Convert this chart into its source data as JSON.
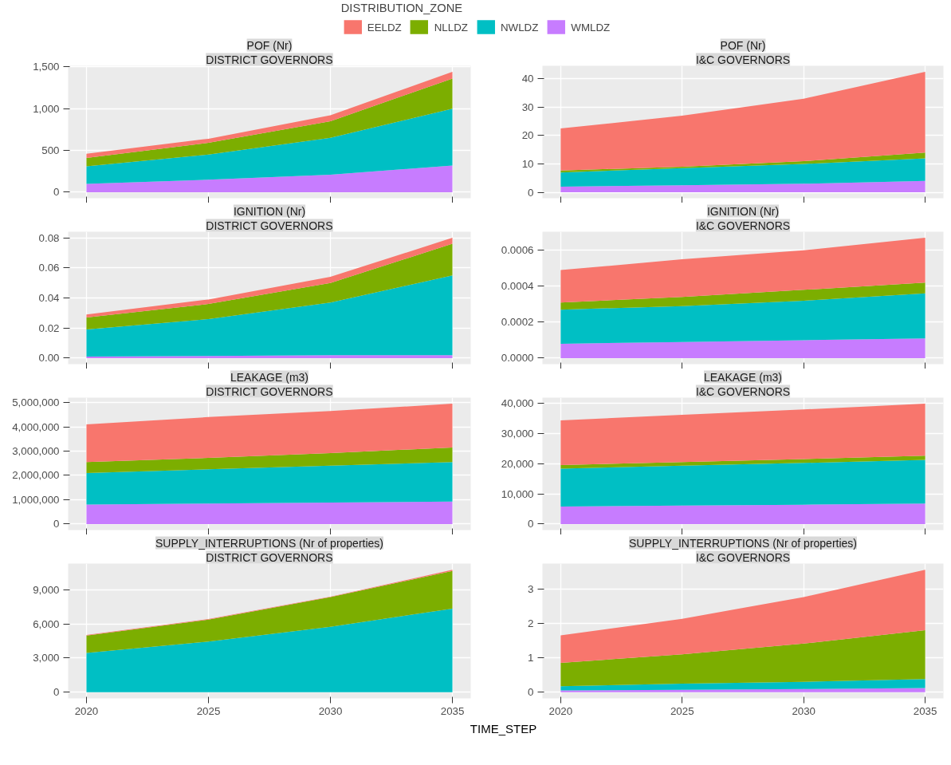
{
  "chart_data": [
    {
      "type": "area",
      "stacked": true,
      "title": "POF (Nr)",
      "subtitle": "DISTRICT GOVERNORS",
      "legend_title": "DISTRIBUTION_ZONE",
      "legend": "top",
      "grid": true,
      "tick_labels": "y",
      "x": [
        2020,
        2025,
        2030,
        2035
      ],
      "xlim": [
        2019.25,
        2035.75
      ],
      "xticks": [
        2020,
        2025,
        2030,
        2035
      ],
      "ylim": [
        -72,
        1512
      ],
      "yticks": [
        0,
        500,
        {
          "value": 1000,
          "label": "1,000"
        },
        {
          "value": 1500,
          "label": "1,500"
        }
      ],
      "series": [
        {
          "name": "WMLDZ",
          "color": "#c77cff",
          "values": [
            100,
            150,
            210,
            320
          ]
        },
        {
          "name": "NWLDZ",
          "color": "#00bfc4",
          "values": [
            210,
            300,
            440,
            680
          ]
        },
        {
          "name": "NLLDZ",
          "color": "#7cae00",
          "values": [
            100,
            140,
            200,
            360
          ]
        },
        {
          "name": "EELDZ",
          "color": "#f8766d",
          "values": [
            50,
            50,
            70,
            80
          ]
        }
      ]
    },
    {
      "type": "area",
      "stacked": true,
      "title": "POF (Nr)",
      "subtitle": "I&C GOVERNORS",
      "grid": true,
      "tick_labels": "y",
      "x": [
        2020,
        2025,
        2030,
        2035
      ],
      "xlim": [
        2019.25,
        2035.75
      ],
      "xticks": [
        2020,
        2025,
        2030,
        2035
      ],
      "ylim": [
        -2.1,
        44.6
      ],
      "yticks": [
        0,
        10,
        20,
        30,
        40
      ],
      "series": [
        {
          "color": "#c77cff",
          "values": [
            2,
            2.5,
            3,
            4
          ]
        },
        {
          "color": "#00bfc4",
          "values": [
            5,
            6,
            7,
            8
          ]
        },
        {
          "color": "#7cae00",
          "values": [
            0.7,
            0.5,
            1,
            2
          ]
        },
        {
          "color": "#f8766d",
          "values": [
            14.8,
            18,
            22,
            28.5
          ]
        }
      ]
    },
    {
      "type": "area",
      "stacked": true,
      "title": "IGNITION (Nr)",
      "subtitle": "DISTRICT GOVERNORS",
      "grid": true,
      "tick_labels": "y",
      "x": [
        2020,
        2025,
        2030,
        2035
      ],
      "xlim": [
        2019.25,
        2035.75
      ],
      "xticks": [
        2020,
        2025,
        2030,
        2035
      ],
      "ylim": [
        -0.004,
        0.084
      ],
      "yticks": [
        {
          "value": 0,
          "label": "0.00"
        },
        0.02,
        0.04,
        0.06,
        0.08
      ],
      "series": [
        {
          "color": "#c77cff",
          "values": [
            0.001,
            0.0015,
            0.002,
            0.002
          ]
        },
        {
          "color": "#00bfc4",
          "values": [
            0.018,
            0.0245,
            0.035,
            0.053
          ]
        },
        {
          "color": "#7cae00",
          "values": [
            0.008,
            0.01,
            0.013,
            0.021
          ]
        },
        {
          "color": "#f8766d",
          "values": [
            0.002,
            0.003,
            0.004,
            0.004
          ]
        }
      ]
    },
    {
      "type": "area",
      "stacked": true,
      "title": "IGNITION (Nr)",
      "subtitle": "I&C GOVERNORS",
      "grid": true,
      "tick_labels": "y",
      "x": [
        2020,
        2025,
        2030,
        2035
      ],
      "xlim": [
        2019.25,
        2035.75
      ],
      "xticks": [
        2020,
        2025,
        2030,
        2035
      ],
      "ylim": [
        -3.35e-05,
        0.0007035
      ],
      "yticks": [
        {
          "value": 0,
          "label": "0.0000"
        },
        0.0002,
        0.0004,
        0.0006
      ],
      "series": [
        {
          "color": "#c77cff",
          "values": [
            8e-05,
            9e-05,
            0.0001,
            0.00011
          ]
        },
        {
          "color": "#00bfc4",
          "values": [
            0.00019,
            0.0002,
            0.00022,
            0.00025
          ]
        },
        {
          "color": "#7cae00",
          "values": [
            4e-05,
            5e-05,
            6e-05,
            6e-05
          ]
        },
        {
          "color": "#f8766d",
          "values": [
            0.00018,
            0.00021,
            0.00022,
            0.00025
          ]
        }
      ]
    },
    {
      "type": "area",
      "stacked": true,
      "title": "LEAKAGE (m3)",
      "subtitle": "DISTRICT GOVERNORS",
      "grid": true,
      "tick_labels": "y",
      "x": [
        2020,
        2025,
        2030,
        2035
      ],
      "xlim": [
        2019.25,
        2035.75
      ],
      "xticks": [
        2020,
        2025,
        2030,
        2035
      ],
      "ylim": [
        -250000,
        5200000
      ],
      "yticks": [
        0,
        {
          "value": 1000000,
          "label": "1,000,000"
        },
        {
          "value": 2000000,
          "label": "2,000,000"
        },
        {
          "value": 3000000,
          "label": "3,000,000"
        },
        {
          "value": 4000000,
          "label": "4,000,000"
        },
        {
          "value": 5000000,
          "label": "5,000,000"
        }
      ],
      "series": [
        {
          "color": "#c77cff",
          "values": [
            800000,
            840000,
            880000,
            920000
          ]
        },
        {
          "color": "#00bfc4",
          "values": [
            1300000,
            1410000,
            1520000,
            1630000
          ]
        },
        {
          "color": "#7cae00",
          "values": [
            450000,
            470000,
            520000,
            600000
          ]
        },
        {
          "color": "#f8766d",
          "values": [
            1550000,
            1680000,
            1730000,
            1800000
          ]
        }
      ]
    },
    {
      "type": "area",
      "stacked": true,
      "title": "LEAKAGE (m3)",
      "subtitle": "I&C GOVERNORS",
      "grid": true,
      "tick_labels": "y",
      "x": [
        2020,
        2025,
        2030,
        2035
      ],
      "xlim": [
        2019.25,
        2035.75
      ],
      "xticks": [
        2020,
        2025,
        2030,
        2035
      ],
      "ylim": [
        -2000,
        41800
      ],
      "yticks": [
        0,
        {
          "value": 10000,
          "label": "10,000"
        },
        {
          "value": 20000,
          "label": "20,000"
        },
        {
          "value": 30000,
          "label": "30,000"
        },
        {
          "value": 40000,
          "label": "40,000"
        }
      ],
      "series": [
        {
          "color": "#c77cff",
          "values": [
            5800,
            6100,
            6400,
            6800
          ]
        },
        {
          "color": "#00bfc4",
          "values": [
            12500,
            13200,
            13800,
            14400
          ]
        },
        {
          "color": "#7cae00",
          "values": [
            1200,
            1200,
            1300,
            1400
          ]
        },
        {
          "color": "#f8766d",
          "values": [
            14800,
            15600,
            16400,
            17200
          ]
        }
      ]
    },
    {
      "type": "area",
      "stacked": true,
      "title": "SUPPLY_INTERRUPTIONS (Nr of properties)",
      "subtitle": "DISTRICT GOVERNORS",
      "xlabel": "TIME_STEP",
      "grid": true,
      "x": [
        2020,
        2025,
        2030,
        2035
      ],
      "xlim": [
        2019.25,
        2035.75
      ],
      "xticks": [
        2020,
        2025,
        2030,
        2035
      ],
      "ylim": [
        -540,
        11300
      ],
      "yticks": [
        0,
        {
          "value": 3000,
          "label": "3,000"
        },
        {
          "value": 6000,
          "label": "6,000"
        },
        {
          "value": 9000,
          "label": "9,000"
        }
      ],
      "series": [
        {
          "color": "#00bfc4",
          "values": [
            3450,
            4450,
            5750,
            7350
          ]
        },
        {
          "color": "#7cae00",
          "values": [
            1530,
            1930,
            2600,
            3300
          ]
        },
        {
          "color": "#f8766d",
          "values": [
            50,
            50,
            50,
            100
          ]
        }
      ]
    },
    {
      "type": "area",
      "stacked": true,
      "title": "SUPPLY_INTERRUPTIONS (Nr of properties)",
      "subtitle": "I&C GOVERNORS",
      "grid": true,
      "x": [
        2020,
        2025,
        2030,
        2035
      ],
      "xlim": [
        2019.25,
        2035.75
      ],
      "xticks": [
        2020,
        2025,
        2030,
        2035
      ],
      "ylim": [
        -0.18,
        3.73
      ],
      "yticks": [
        0,
        1,
        2,
        3
      ],
      "series": [
        {
          "color": "#c77cff",
          "values": [
            0.05,
            0.07,
            0.09,
            0.12
          ]
        },
        {
          "color": "#00bfc4",
          "values": [
            0.12,
            0.18,
            0.21,
            0.26
          ]
        },
        {
          "color": "#7cae00",
          "values": [
            0.68,
            0.85,
            1.11,
            1.42
          ]
        },
        {
          "color": "#f8766d",
          "values": [
            0.8,
            1.03,
            1.35,
            1.75
          ]
        }
      ]
    }
  ]
}
